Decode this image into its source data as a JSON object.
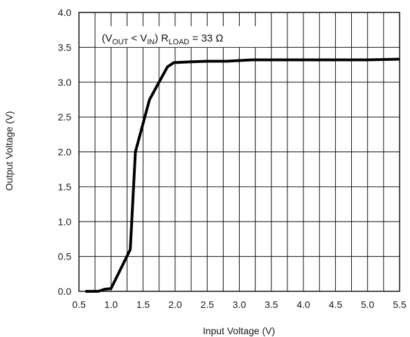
{
  "chart_data": {
    "type": "line",
    "xlabel": "Input Voltage (V)",
    "ylabel": "Output Voltage (V)",
    "xlim": [
      0.5,
      5.5
    ],
    "ylim": [
      0.0,
      4.0
    ],
    "x_ticks": [
      0.5,
      1.0,
      1.5,
      2.0,
      2.5,
      3.0,
      3.5,
      4.0,
      4.5,
      5.0,
      5.5
    ],
    "x_tick_labels": [
      "0.5",
      "1.0",
      "1.5",
      "2.0",
      "2.5",
      "3.0",
      "3.5",
      "4.0",
      "4.5",
      "5.0",
      "5.5"
    ],
    "y_ticks": [
      0.0,
      0.5,
      1.0,
      1.5,
      2.0,
      2.5,
      3.0,
      3.5,
      4.0
    ],
    "y_tick_labels": [
      "0.0",
      "0.5",
      "1.0",
      "1.5",
      "2.0",
      "2.5",
      "3.0",
      "3.5",
      "4.0"
    ],
    "x_minor_gridlines": [
      0.75,
      1.25,
      1.75,
      2.25,
      2.75,
      3.25,
      3.75,
      4.25,
      4.75,
      5.25
    ],
    "grid": true,
    "legend": "none",
    "annotation": {
      "open_paren": "(",
      "v1": "V",
      "v1_sub": "OUT",
      "less_than": " < ",
      "v2": "V",
      "v2_sub": "IN",
      "close_paren": ") ",
      "r": "R",
      "r_sub": "LOAD",
      "equals": " = 33 Ω"
    },
    "series": [
      {
        "color": "#000000",
        "x": [
          0.6,
          0.8,
          0.9,
          1.0,
          1.3,
          1.38,
          1.6,
          1.88,
          1.98,
          2.2,
          2.5,
          2.8,
          3.0,
          3.2,
          3.5,
          4.0,
          4.5,
          5.0,
          5.5
        ],
        "y": [
          0.0,
          0.0,
          0.03,
          0.04,
          0.6,
          2.0,
          2.75,
          3.22,
          3.28,
          3.29,
          3.3,
          3.3,
          3.31,
          3.32,
          3.32,
          3.32,
          3.32,
          3.32,
          3.33
        ]
      }
    ]
  }
}
